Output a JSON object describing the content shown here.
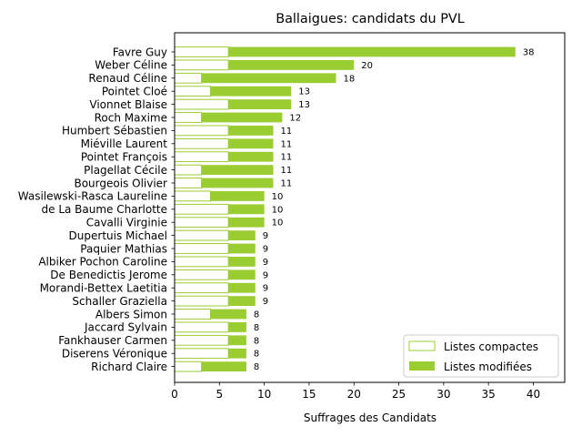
{
  "chart_data": {
    "type": "bar",
    "orientation": "horizontal",
    "stacked": true,
    "title": "Ballaigues: candidats du PVL",
    "xlabel": "Suffrages des Candidats",
    "ylabel": "",
    "xlim": [
      0,
      43.5
    ],
    "x_ticks": [
      0,
      5,
      10,
      15,
      20,
      25,
      30,
      35,
      40
    ],
    "grid": false,
    "legend_position": "bottom-right",
    "categories": [
      "Favre Guy",
      "Weber Céline",
      "Renaud Céline",
      "Pointet Cloé",
      "Vionnet Blaise",
      "Roch Maxime",
      "Humbert Sébastien",
      "Miéville Laurent",
      "Pointet François",
      "Plagellat Cécile",
      "Bourgeois Olivier",
      "Wasilewski-Rasca Laureline",
      "de La Baume Charlotte",
      "Cavalli Virginie",
      "Dupertuis Michael",
      "Paquier Mathias",
      "Albiker Pochon Caroline",
      "De Benedictis Jerome",
      "Morandi-Bettex Laetitia",
      "Schaller Graziella",
      "Albers Simon",
      "Jaccard Sylvain",
      "Fankhauser Carmen",
      "Diserens Véronique",
      "Richard Claire"
    ],
    "series": [
      {
        "name": "Listes compactes",
        "color": "#9acd32",
        "values": [
          6,
          6,
          3,
          4,
          6,
          3,
          6,
          6,
          6,
          3,
          3,
          4,
          6,
          6,
          6,
          6,
          6,
          6,
          6,
          6,
          4,
          6,
          6,
          6,
          3
        ]
      },
      {
        "name": "Listes modifiées",
        "color": "#9acd32",
        "values": [
          32,
          14,
          15,
          9,
          7,
          9,
          5,
          5,
          5,
          8,
          8,
          6,
          4,
          4,
          3,
          3,
          3,
          3,
          3,
          3,
          4,
          2,
          2,
          2,
          5
        ]
      }
    ],
    "totals": [
      38,
      20,
      18,
      13,
      13,
      12,
      11,
      11,
      11,
      11,
      11,
      10,
      10,
      10,
      9,
      9,
      9,
      9,
      9,
      9,
      8,
      8,
      8,
      8,
      8
    ]
  }
}
